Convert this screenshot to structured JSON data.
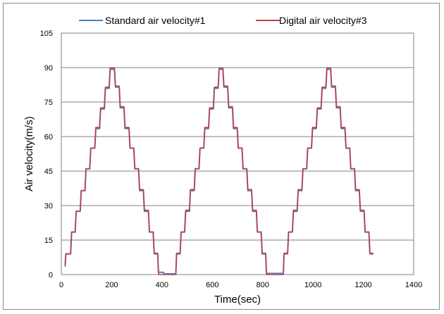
{
  "chart_data": {
    "type": "line",
    "title": "",
    "xlabel": "Time(sec)",
    "ylabel": "Air velocity(m/s)",
    "xlim": [
      0,
      1400
    ],
    "ylim": [
      0,
      105
    ],
    "xticks": [
      "0",
      "200",
      "400",
      "600",
      "800",
      "1000",
      "1200",
      "1400"
    ],
    "yticks": [
      "0",
      "15",
      "30",
      "45",
      "60",
      "75",
      "90",
      "105"
    ],
    "grid": "horizontal",
    "legend_position": "top",
    "series": [
      {
        "name": "Standard air velocity#1",
        "color": "#4a7ebb",
        "points": [
          [
            15,
            3.5
          ],
          [
            18,
            9
          ],
          [
            37,
            9
          ],
          [
            41,
            18.5
          ],
          [
            55,
            18.5
          ],
          [
            59,
            27.5
          ],
          [
            75,
            27.5
          ],
          [
            79,
            36.5
          ],
          [
            94,
            36.5
          ],
          [
            98,
            46
          ],
          [
            113,
            46
          ],
          [
            117,
            55
          ],
          [
            133,
            55
          ],
          [
            137,
            63.5
          ],
          [
            152,
            63.5
          ],
          [
            156,
            72
          ],
          [
            171,
            72
          ],
          [
            175,
            81
          ],
          [
            190,
            81
          ],
          [
            194,
            89.3
          ],
          [
            211,
            89.3
          ],
          [
            215,
            81.5
          ],
          [
            230,
            81.5
          ],
          [
            234,
            72.5
          ],
          [
            249,
            72.5
          ],
          [
            253,
            63.5
          ],
          [
            269,
            63.5
          ],
          [
            273,
            55
          ],
          [
            288,
            55
          ],
          [
            292,
            46
          ],
          [
            307,
            46
          ],
          [
            311,
            36.5
          ],
          [
            326,
            36.5
          ],
          [
            330,
            27.5
          ],
          [
            346,
            27.5
          ],
          [
            350,
            18.5
          ],
          [
            365,
            18.5
          ],
          [
            369,
            9
          ],
          [
            383,
            9
          ],
          [
            386,
            1
          ],
          [
            405,
            1
          ],
          [
            408,
            0.3
          ],
          [
            455,
            0.3
          ],
          [
            458,
            9
          ],
          [
            472,
            9
          ],
          [
            476,
            18.5
          ],
          [
            490,
            18.5
          ],
          [
            494,
            27.5
          ],
          [
            509,
            27.5
          ],
          [
            513,
            36.5
          ],
          [
            528,
            36.5
          ],
          [
            532,
            46
          ],
          [
            547,
            46
          ],
          [
            551,
            55
          ],
          [
            566,
            55
          ],
          [
            570,
            63.5
          ],
          [
            585,
            63.5
          ],
          [
            589,
            72
          ],
          [
            604,
            72
          ],
          [
            608,
            81
          ],
          [
            623,
            81
          ],
          [
            627,
            89.3
          ],
          [
            642,
            89.3
          ],
          [
            646,
            81.5
          ],
          [
            661,
            81.5
          ],
          [
            665,
            72.5
          ],
          [
            680,
            72.5
          ],
          [
            684,
            63.5
          ],
          [
            699,
            63.5
          ],
          [
            703,
            55
          ],
          [
            718,
            55
          ],
          [
            722,
            46
          ],
          [
            737,
            46
          ],
          [
            741,
            36.5
          ],
          [
            756,
            36.5
          ],
          [
            760,
            27.5
          ],
          [
            775,
            27.5
          ],
          [
            779,
            18.5
          ],
          [
            794,
            18.5
          ],
          [
            798,
            9
          ],
          [
            812,
            9
          ],
          [
            815,
            0.5
          ],
          [
            882,
            0.5
          ],
          [
            885,
            9
          ],
          [
            899,
            9
          ],
          [
            903,
            18.5
          ],
          [
            918,
            18.5
          ],
          [
            922,
            27.5
          ],
          [
            937,
            27.5
          ],
          [
            941,
            36.5
          ],
          [
            956,
            36.5
          ],
          [
            960,
            46
          ],
          [
            975,
            46
          ],
          [
            979,
            55
          ],
          [
            994,
            55
          ],
          [
            998,
            63.5
          ],
          [
            1013,
            63.5
          ],
          [
            1017,
            72
          ],
          [
            1032,
            72
          ],
          [
            1036,
            81
          ],
          [
            1051,
            81
          ],
          [
            1055,
            89.3
          ],
          [
            1070,
            89.3
          ],
          [
            1074,
            81.5
          ],
          [
            1089,
            81.5
          ],
          [
            1093,
            72.5
          ],
          [
            1108,
            72.5
          ],
          [
            1112,
            63.5
          ],
          [
            1127,
            63.5
          ],
          [
            1131,
            55
          ],
          [
            1146,
            55
          ],
          [
            1150,
            46
          ],
          [
            1165,
            46
          ],
          [
            1169,
            36.5
          ],
          [
            1184,
            36.5
          ],
          [
            1188,
            27.5
          ],
          [
            1203,
            27.5
          ],
          [
            1207,
            18.5
          ],
          [
            1222,
            18.5
          ],
          [
            1226,
            9
          ],
          [
            1240,
            9
          ]
        ]
      },
      {
        "name": "Digital air velocity#3",
        "color": "#c0404a",
        "points": [
          [
            15,
            4.5
          ],
          [
            18,
            9
          ],
          [
            37,
            9
          ],
          [
            41,
            18.5
          ],
          [
            55,
            18.5
          ],
          [
            59,
            27.5
          ],
          [
            75,
            27.5
          ],
          [
            79,
            36.5
          ],
          [
            94,
            36.5
          ],
          [
            98,
            46
          ],
          [
            113,
            46
          ],
          [
            117,
            55
          ],
          [
            133,
            55
          ],
          [
            137,
            64
          ],
          [
            152,
            64
          ],
          [
            156,
            72.5
          ],
          [
            171,
            72.5
          ],
          [
            175,
            81.5
          ],
          [
            190,
            81.5
          ],
          [
            194,
            89.8
          ],
          [
            211,
            89.8
          ],
          [
            215,
            82
          ],
          [
            230,
            82
          ],
          [
            234,
            73
          ],
          [
            249,
            73
          ],
          [
            253,
            64
          ],
          [
            269,
            64
          ],
          [
            273,
            55
          ],
          [
            288,
            55
          ],
          [
            292,
            46
          ],
          [
            307,
            46
          ],
          [
            311,
            37
          ],
          [
            326,
            37
          ],
          [
            330,
            28
          ],
          [
            346,
            28
          ],
          [
            350,
            18.5
          ],
          [
            365,
            18.5
          ],
          [
            369,
            9.3
          ],
          [
            383,
            9.3
          ],
          [
            386,
            0
          ],
          [
            455,
            0
          ],
          [
            458,
            9.3
          ],
          [
            472,
            9.3
          ],
          [
            476,
            18.5
          ],
          [
            490,
            18.5
          ],
          [
            494,
            28
          ],
          [
            509,
            28
          ],
          [
            513,
            37
          ],
          [
            528,
            37
          ],
          [
            532,
            46
          ],
          [
            547,
            46
          ],
          [
            551,
            55
          ],
          [
            566,
            55
          ],
          [
            570,
            64
          ],
          [
            585,
            64
          ],
          [
            589,
            72.5
          ],
          [
            604,
            72.5
          ],
          [
            608,
            81.5
          ],
          [
            623,
            81.5
          ],
          [
            627,
            89.8
          ],
          [
            642,
            89.8
          ],
          [
            646,
            82
          ],
          [
            661,
            82
          ],
          [
            665,
            73
          ],
          [
            680,
            73
          ],
          [
            684,
            64
          ],
          [
            699,
            64
          ],
          [
            703,
            55
          ],
          [
            718,
            55
          ],
          [
            722,
            46
          ],
          [
            737,
            46
          ],
          [
            741,
            37
          ],
          [
            756,
            37
          ],
          [
            760,
            28
          ],
          [
            775,
            28
          ],
          [
            779,
            18.5
          ],
          [
            794,
            18.5
          ],
          [
            798,
            9.3
          ],
          [
            812,
            9.3
          ],
          [
            815,
            0
          ],
          [
            882,
            0
          ],
          [
            885,
            9.3
          ],
          [
            899,
            9.3
          ],
          [
            903,
            18.5
          ],
          [
            918,
            18.5
          ],
          [
            922,
            28
          ],
          [
            937,
            28
          ],
          [
            941,
            37
          ],
          [
            956,
            37
          ],
          [
            960,
            46
          ],
          [
            975,
            46
          ],
          [
            979,
            55
          ],
          [
            994,
            55
          ],
          [
            998,
            64
          ],
          [
            1013,
            64
          ],
          [
            1017,
            72.5
          ],
          [
            1032,
            72.5
          ],
          [
            1036,
            81.5
          ],
          [
            1051,
            81.5
          ],
          [
            1055,
            89.8
          ],
          [
            1070,
            89.8
          ],
          [
            1074,
            82
          ],
          [
            1089,
            82
          ],
          [
            1093,
            73
          ],
          [
            1108,
            73
          ],
          [
            1112,
            64
          ],
          [
            1127,
            64
          ],
          [
            1131,
            55
          ],
          [
            1146,
            55
          ],
          [
            1150,
            46
          ],
          [
            1165,
            46
          ],
          [
            1169,
            37
          ],
          [
            1184,
            37
          ],
          [
            1188,
            28
          ],
          [
            1203,
            28
          ],
          [
            1207,
            18.5
          ],
          [
            1222,
            18.5
          ],
          [
            1226,
            9.3
          ],
          [
            1240,
            9.3
          ]
        ]
      }
    ]
  }
}
